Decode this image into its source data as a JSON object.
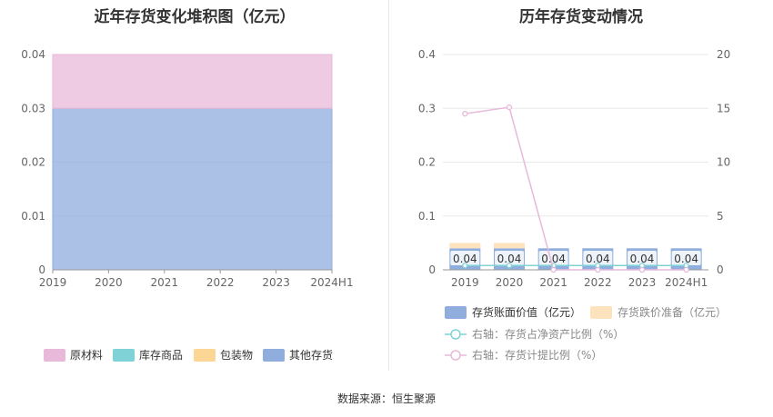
{
  "footer": {
    "source": "数据来源：恒生聚源"
  },
  "colors": {
    "raw_material": "#e8b9d9",
    "goods": "#7fd3d6",
    "packaging": "#fbd694",
    "other": "#8faedd",
    "book_value": "#8faedd",
    "impairment": "#fde3bd",
    "ratio_net_assets": "#7fd3d6",
    "provision_ratio": "#e8b9d9"
  },
  "chart_data": [
    {
      "type": "area",
      "title": "近年存货变化堆积图（亿元）",
      "categories": [
        "2019",
        "2020",
        "2021",
        "2022",
        "2023",
        "2024H1"
      ],
      "ylim": [
        0,
        0.04
      ],
      "yticks": [
        "0",
        "0.01",
        "0.02",
        "0.03",
        "0.04"
      ],
      "legend": [
        "原材料",
        "库存商品",
        "包装物",
        "其他存货"
      ],
      "legend_position": "bottom",
      "series": [
        {
          "name": "原材料",
          "values": [
            0.01,
            0.01,
            0.01,
            0.01,
            0.01,
            0.01
          ]
        },
        {
          "name": "库存商品",
          "values": [
            0,
            0,
            0,
            0,
            0,
            0
          ]
        },
        {
          "name": "包装物",
          "values": [
            0,
            0,
            0,
            0,
            0,
            0
          ]
        },
        {
          "name": "其他存货",
          "values": [
            0.03,
            0.03,
            0.03,
            0.03,
            0.03,
            0.03
          ]
        }
      ]
    },
    {
      "type": "bar",
      "title": "历年存货变动情况",
      "categories": [
        "2019",
        "2020",
        "2021",
        "2022",
        "2023",
        "2024H1"
      ],
      "ylim": [
        0,
        0.4
      ],
      "yticks": [
        "0",
        "0.1",
        "0.2",
        "0.3",
        "0.4"
      ],
      "y2lim": [
        0,
        20
      ],
      "y2ticks": [
        "0",
        "5",
        "10",
        "15",
        "20"
      ],
      "legend_position": "bottom",
      "bar_series": [
        {
          "name": "存货账面价值（亿元）",
          "values": [
            0.04,
            0.04,
            0.04,
            0.04,
            0.04,
            0.04
          ],
          "labels": [
            "0.04",
            "0.04",
            "0.04",
            "0.04",
            "0.04",
            "0.04"
          ]
        },
        {
          "name": "存货跌价准备（亿元）",
          "values": [
            0.01,
            0.01,
            0,
            0,
            0,
            0
          ]
        }
      ],
      "line_series": [
        {
          "name": "右轴：存货占净资产比例（%）",
          "values": [
            0.4,
            0.4,
            0.4,
            0.4,
            0.4,
            0.4
          ]
        },
        {
          "name": "右轴：存货计提比例（%）",
          "values": [
            14.5,
            15.1,
            0,
            0,
            0,
            0
          ]
        }
      ]
    }
  ]
}
